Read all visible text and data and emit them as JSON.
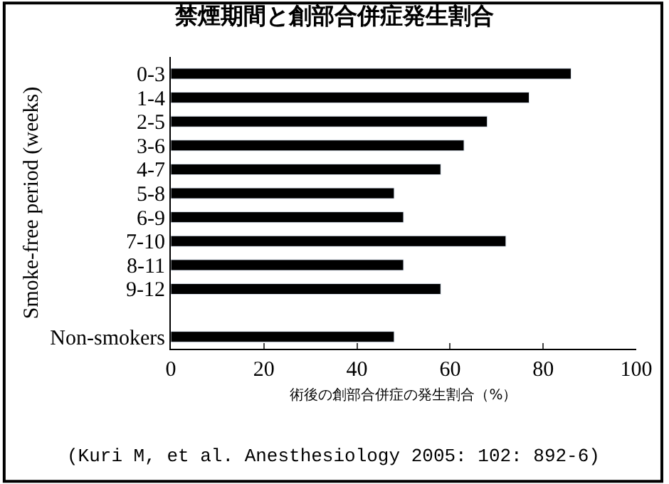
{
  "chart_data": {
    "type": "bar",
    "orientation": "horizontal",
    "title": "禁煙期間と創部合併症発生割合",
    "ylabel": "Smoke-free period (weeks)",
    "xlabel": "術後の創部合併症の発生割合（%）",
    "categories": [
      "0-3",
      "1-4",
      "2-5",
      "3-6",
      "4-7",
      "5-8",
      "6-9",
      "7-10",
      "8-11",
      "9-12",
      null,
      "Non-smokers"
    ],
    "values": [
      86,
      77,
      68,
      63,
      58,
      48,
      50,
      72,
      50,
      58,
      null,
      48
    ],
    "color": "#000000",
    "xlim": [
      0,
      100
    ],
    "xticks": [
      0,
      20,
      40,
      60,
      80,
      100
    ],
    "legend": false,
    "annotations": [
      "(Kuri M, et al. Anesthesiology 2005: 102: 892-6)"
    ]
  }
}
